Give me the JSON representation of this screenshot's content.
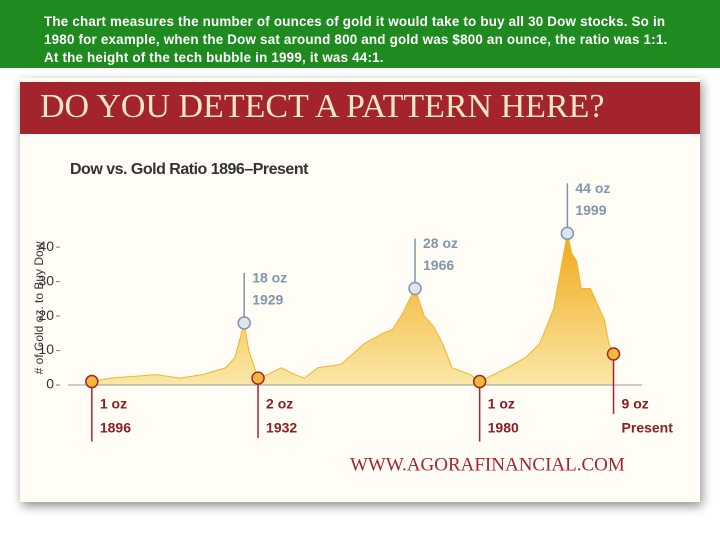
{
  "caption": "The chart measures the number of ounces of gold it would take to buy all 30 Dow stocks. So in 1980 for example, when the Dow sat around 800 and gold was $800 an ounce, the ratio was 1:1. At the height of the tech bubble in 1999, it was 44:1.",
  "chart_data": {
    "type": "area",
    "title": "DO YOU DETECT A PATTERN HERE?",
    "subtitle": "Dow vs. Gold Ratio 1896–Present",
    "y_label": "# of Gold oz. to Buy Dow",
    "source": "WWW.AGORAFINANCIAL.COM",
    "color": "#f2b42a",
    "x": [
      1896,
      1900,
      1905,
      1910,
      1915,
      1920,
      1925,
      1927,
      1929,
      1930,
      1932,
      1934,
      1937,
      1940,
      1942,
      1945,
      1950,
      1955,
      1959,
      1961,
      1963,
      1966,
      1968,
      1970,
      1972,
      1974,
      1976,
      1978,
      1980,
      1983,
      1986,
      1990,
      1993,
      1996,
      1999,
      2000,
      2001,
      2002,
      2004,
      2006,
      2007,
      2008,
      2009
    ],
    "values": [
      1,
      2,
      2.5,
      3,
      2,
      3,
      5,
      8,
      18,
      10,
      2,
      3,
      5,
      3,
      2,
      5,
      6,
      12,
      15,
      16,
      20,
      28,
      20,
      17,
      12,
      5,
      4,
      3,
      1,
      3,
      5,
      8,
      12,
      22,
      44,
      38,
      36,
      28,
      28,
      22,
      19,
      12,
      9
    ],
    "xlim": [
      1893,
      2013
    ],
    "ylim": [
      0,
      47
    ],
    "yticks": [
      0,
      10,
      20,
      30,
      40
    ],
    "annotations": [
      {
        "value": 1,
        "value_label": "1 oz",
        "x": 1896,
        "x_label": "1896"
      },
      {
        "value": 18,
        "value_label": "18 oz",
        "x": 1929,
        "x_label": "1929"
      },
      {
        "value": 2,
        "value_label": "2 oz",
        "x": 1932,
        "x_label": "1932"
      },
      {
        "value": 28,
        "value_label": "28 oz",
        "x": 1966,
        "x_label": "1966"
      },
      {
        "value": 1,
        "value_label": "1 oz",
        "x": 1980,
        "x_label": "1980"
      },
      {
        "value": 44,
        "value_label": "44 oz",
        "x": 1999,
        "x_label": "1999"
      },
      {
        "value": 9,
        "value_label": "9 oz",
        "x": 2009,
        "x_label": "Present"
      }
    ]
  }
}
